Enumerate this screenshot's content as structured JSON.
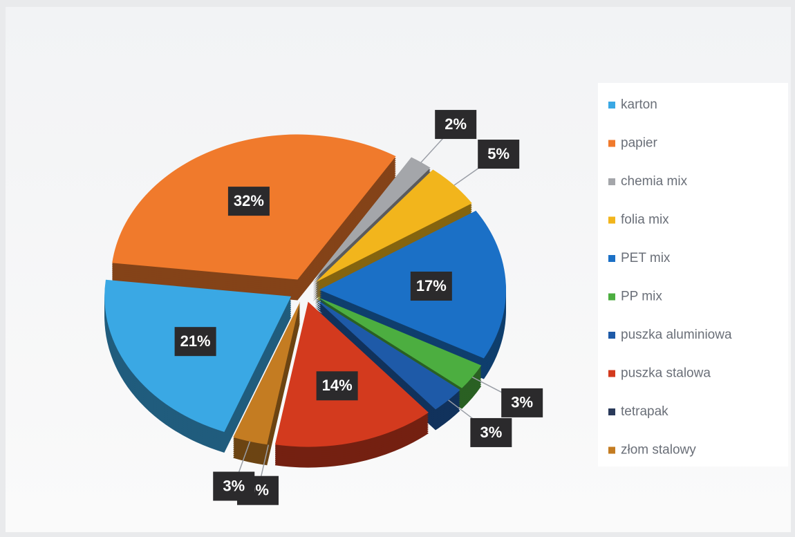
{
  "chart_data": {
    "type": "pie",
    "categories": [
      "karton",
      "papier",
      "chemia mix",
      "folia mix",
      "PET mix",
      "PP mix",
      "puszka aluminiowa",
      "puszka stalowa",
      "tetrapak",
      "złom stalowy"
    ],
    "values": [
      21,
      32,
      2,
      5,
      17,
      3,
      3,
      14,
      0,
      3
    ],
    "value_labels": [
      "21%",
      "32%",
      "2%",
      "5%",
      "17%",
      "3%",
      "3%",
      "14%",
      "0%",
      "3%"
    ],
    "colors": [
      "#3aa8e4",
      "#f07a2c",
      "#a4a6aa",
      "#f2b51c",
      "#1b70c6",
      "#4cae40",
      "#1e5aa8",
      "#d33a1e",
      "#2a3a5a",
      "#c47c22"
    ],
    "legend": "right"
  }
}
